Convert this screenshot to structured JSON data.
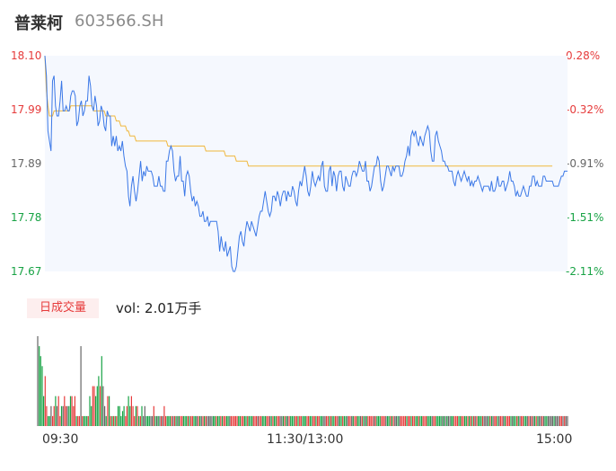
{
  "header": {
    "name": "普莱柯",
    "code": "603566.SH"
  },
  "colors": {
    "up": "#e63b3b",
    "down": "#18a345",
    "flat": "#666666",
    "price_line": "#3b78e7",
    "avg_line": "#f0b73c",
    "area_fill": "#f5f8fe"
  },
  "volume_panel": {
    "tag": "日成交量",
    "text": "vol: 2.01万手"
  },
  "chart_data": [
    {
      "type": "line",
      "title": "",
      "ylim": [
        17.67,
        18.1
      ],
      "y_ticks_left": [
        "18.10",
        "17.99",
        "17.89",
        "17.78",
        "17.67"
      ],
      "y_ticks_right": [
        "0.28%",
        "-0.32%",
        "-0.91%",
        "-1.51%",
        "-2.11%"
      ],
      "x_ticks": [
        "09:30",
        "11:30/13:00",
        "15:00"
      ],
      "series": [
        {
          "values": [
            18.1,
            18.06,
            17.95,
            17.93,
            17.91,
            18.05,
            18.06,
            18.0,
            17.98,
            17.98,
            18.01,
            18.05,
            17.99,
            17.99,
            18.0,
            17.99,
            17.99,
            18.02,
            18.03,
            18.03,
            18.02,
            17.96,
            17.97,
            18.0,
            18.01,
            17.98,
            17.99,
            18.01,
            18.01,
            18.06,
            18.04,
            18.0,
            17.99,
            18.02,
            18.0,
            17.96,
            17.97,
            18.0,
            17.99,
            17.96,
            17.95,
            17.99,
            17.98,
            17.98,
            17.92,
            17.94,
            17.92,
            17.94,
            17.91,
            17.92,
            17.91,
            17.93,
            17.9,
            17.88,
            17.87,
            17.82,
            17.8,
            17.84,
            17.86,
            17.83,
            17.81,
            17.83,
            17.86,
            17.89,
            17.85,
            17.87,
            17.86,
            17.88,
            17.87,
            17.87,
            17.87,
            17.86,
            17.84,
            17.84,
            17.84,
            17.86,
            17.84,
            17.84,
            17.83,
            17.83,
            17.89,
            17.89,
            17.91,
            17.92,
            17.91,
            17.87,
            17.85,
            17.86,
            17.86,
            17.9,
            17.85,
            17.85,
            17.82,
            17.86,
            17.87,
            17.86,
            17.83,
            17.81,
            17.82,
            17.8,
            17.81,
            17.8,
            17.78,
            17.78,
            17.79,
            17.77,
            17.77,
            17.78,
            17.76,
            17.77,
            17.77,
            17.77,
            17.77,
            17.77,
            17.75,
            17.71,
            17.74,
            17.72,
            17.71,
            17.73,
            17.7,
            17.71,
            17.72,
            17.68,
            17.67,
            17.67,
            17.68,
            17.71,
            17.74,
            17.75,
            17.73,
            17.72,
            17.75,
            17.77,
            17.76,
            17.75,
            17.77,
            17.76,
            17.75,
            17.74,
            17.76,
            17.78,
            17.79,
            17.79,
            17.81,
            17.83,
            17.81,
            17.79,
            17.78,
            17.79,
            17.82,
            17.82,
            17.81,
            17.83,
            17.82,
            17.8,
            17.82,
            17.83,
            17.83,
            17.81,
            17.83,
            17.82,
            17.82,
            17.84,
            17.83,
            17.81,
            17.8,
            17.83,
            17.85,
            17.84,
            17.86,
            17.88,
            17.86,
            17.83,
            17.82,
            17.84,
            17.87,
            17.85,
            17.84,
            17.85,
            17.86,
            17.85,
            17.88,
            17.89,
            17.84,
            17.83,
            17.83,
            17.87,
            17.88,
            17.84,
            17.87,
            17.86,
            17.83,
            17.86,
            17.87,
            17.87,
            17.84,
            17.83,
            17.86,
            17.85,
            17.84,
            17.84,
            17.86,
            17.87,
            17.87,
            17.86,
            17.87,
            17.89,
            17.88,
            17.87,
            17.87,
            17.89,
            17.85,
            17.85,
            17.83,
            17.84,
            17.86,
            17.88,
            17.88,
            17.9,
            17.89,
            17.85,
            17.83,
            17.84,
            17.86,
            17.88,
            17.88,
            17.87,
            17.86,
            17.88,
            17.87,
            17.88,
            17.88,
            17.88,
            17.86,
            17.86,
            17.87,
            17.89,
            17.9,
            17.92,
            17.9,
            17.94,
            17.95,
            17.94,
            17.95,
            17.93,
            17.92,
            17.94,
            17.93,
            17.92,
            17.94,
            17.95,
            17.96,
            17.95,
            17.91,
            17.89,
            17.89,
            17.94,
            17.95,
            17.93,
            17.92,
            17.91,
            17.89,
            17.89,
            17.88,
            17.88,
            17.87,
            17.87,
            17.87,
            17.85,
            17.84,
            17.86,
            17.87,
            17.86,
            17.85,
            17.86,
            17.87,
            17.86,
            17.85,
            17.86,
            17.84,
            17.85,
            17.84,
            17.85,
            17.85,
            17.86,
            17.85,
            17.84,
            17.83,
            17.84,
            17.84,
            17.84,
            17.84,
            17.83,
            17.85,
            17.83,
            17.83,
            17.84,
            17.86,
            17.84,
            17.84,
            17.85,
            17.85,
            17.83,
            17.84,
            17.85,
            17.87,
            17.85,
            17.85,
            17.84,
            17.82,
            17.83,
            17.82,
            17.82,
            17.83,
            17.84,
            17.83,
            17.82,
            17.82,
            17.84,
            17.84,
            17.86,
            17.86,
            17.84,
            17.85,
            17.84,
            17.84,
            17.84,
            17.86,
            17.86,
            17.85,
            17.85,
            17.85,
            17.85,
            17.85,
            17.84,
            17.84,
            17.84,
            17.84,
            17.85,
            17.86,
            17.86,
            17.87,
            17.87,
            17.87
          ]
        },
        {
          "values": [
            18.1,
            18.03,
            18.0,
            17.98,
            17.98,
            17.98,
            17.99,
            17.99,
            17.99,
            17.99,
            17.99,
            17.99,
            17.99,
            17.99,
            17.99,
            17.99,
            17.99,
            18.0,
            18.0,
            18.0,
            18.0,
            18.0,
            18.0,
            18.0,
            18.0,
            18.0,
            18.0,
            18.0,
            18.0,
            18.0,
            18.0,
            18.0,
            17.99,
            17.99,
            17.99,
            17.99,
            17.99,
            17.99,
            17.99,
            17.99,
            17.98,
            17.98,
            17.98,
            17.98,
            17.98,
            17.98,
            17.98,
            17.97,
            17.97,
            17.97,
            17.96,
            17.96,
            17.96,
            17.96,
            17.95,
            17.95,
            17.94,
            17.94,
            17.94,
            17.94,
            17.93,
            17.93,
            17.93,
            17.93,
            17.93,
            17.93,
            17.93,
            17.93,
            17.93,
            17.93,
            17.93,
            17.93,
            17.93,
            17.93,
            17.93,
            17.93,
            17.93,
            17.93,
            17.93,
            17.93,
            17.93,
            17.92,
            17.92,
            17.92,
            17.92,
            17.92,
            17.92,
            17.92,
            17.92,
            17.92,
            17.92,
            17.92,
            17.92,
            17.92,
            17.92,
            17.92,
            17.92,
            17.92,
            17.92,
            17.92,
            17.92,
            17.92,
            17.92,
            17.92,
            17.92,
            17.92,
            17.91,
            17.91,
            17.91,
            17.91,
            17.91,
            17.91,
            17.91,
            17.91,
            17.91,
            17.91,
            17.91,
            17.91,
            17.91,
            17.9,
            17.9,
            17.9,
            17.9,
            17.9,
            17.9,
            17.9,
            17.89,
            17.89,
            17.89,
            17.89,
            17.89,
            17.89,
            17.89,
            17.89,
            17.88,
            17.88,
            17.88,
            17.88,
            17.88,
            17.88,
            17.88,
            17.88,
            17.88,
            17.88,
            17.88,
            17.88,
            17.88,
            17.88,
            17.88,
            17.88,
            17.88,
            17.88,
            17.88,
            17.88,
            17.88,
            17.88,
            17.88,
            17.88,
            17.88,
            17.88,
            17.88,
            17.88,
            17.88,
            17.88,
            17.88,
            17.88,
            17.88,
            17.88,
            17.88,
            17.88,
            17.88,
            17.88,
            17.88,
            17.88,
            17.88,
            17.88,
            17.88,
            17.88,
            17.88,
            17.88,
            17.88,
            17.88,
            17.88,
            17.88,
            17.88,
            17.88,
            17.88,
            17.88,
            17.88,
            17.88,
            17.88,
            17.88,
            17.88,
            17.88,
            17.88,
            17.88,
            17.88,
            17.88,
            17.88,
            17.88,
            17.88,
            17.88,
            17.88,
            17.88,
            17.88,
            17.88,
            17.88,
            17.88,
            17.88,
            17.88,
            17.88,
            17.88,
            17.88,
            17.88,
            17.88,
            17.88,
            17.88,
            17.88,
            17.88,
            17.88,
            17.88,
            17.88,
            17.88,
            17.88,
            17.88,
            17.88,
            17.88,
            17.88,
            17.88,
            17.88,
            17.88,
            17.88,
            17.88,
            17.88,
            17.88,
            17.88,
            17.88,
            17.88,
            17.88,
            17.88,
            17.88,
            17.88,
            17.88,
            17.88,
            17.88,
            17.88,
            17.88,
            17.88,
            17.88,
            17.88,
            17.88,
            17.88,
            17.88,
            17.88,
            17.88,
            17.88,
            17.88,
            17.88,
            17.88,
            17.88,
            17.88,
            17.88,
            17.88,
            17.88,
            17.88,
            17.88,
            17.88,
            17.88,
            17.88,
            17.88,
            17.88,
            17.88,
            17.88,
            17.88,
            17.88,
            17.88,
            17.88,
            17.88,
            17.88,
            17.88,
            17.88,
            17.88,
            17.88,
            17.88,
            17.88,
            17.88,
            17.88,
            17.88,
            17.88,
            17.88,
            17.88,
            17.88,
            17.88,
            17.88,
            17.88,
            17.88,
            17.88,
            17.88,
            17.88,
            17.88,
            17.88,
            17.88,
            17.88,
            17.88,
            17.88,
            17.88,
            17.88,
            17.88,
            17.88,
            17.88,
            17.88,
            17.88,
            17.88,
            17.88,
            17.88,
            17.88,
            17.88,
            17.88,
            17.88,
            17.88,
            17.88,
            17.88,
            17.88,
            17.88,
            17.88,
            17.88,
            17.88,
            17.88,
            17.88,
            17.88,
            17.88,
            17.88,
            17.88,
            17.88,
            17.88
          ]
        }
      ]
    },
    {
      "type": "bar",
      "title": "",
      "values": [
        0.9,
        0.8,
        0.7,
        0.6,
        0.3,
        0.5,
        0.2,
        0.1,
        0.1,
        0.2,
        0.1,
        0.2,
        0.3,
        0.2,
        0.3,
        0.1,
        0.2,
        0.2,
        0.3,
        0.2,
        0.2,
        0.2,
        0.3,
        0.3,
        0.2,
        0.3,
        0.1,
        0.1,
        0.1,
        0.8,
        0.1,
        0.1,
        0.1,
        0.1,
        0.1,
        0.3,
        0.2,
        0.4,
        0.4,
        0.3,
        0.4,
        0.5,
        0.4,
        0.7,
        0.4,
        0.2,
        0.1,
        0.3,
        0.3,
        0.1,
        0.1,
        0.1,
        0.1,
        0.1,
        0.2,
        0.2,
        0.1,
        0.15,
        0.2,
        0.1,
        0.2,
        0.3,
        0.2,
        0.3,
        0.2,
        0.1,
        0.2,
        0.2,
        0.1,
        0.1,
        0.2,
        0.1,
        0.2,
        0.1,
        0.1,
        0.1,
        0.1,
        0.1,
        0.2,
        0.1,
        0.1,
        0.1,
        0.1,
        0.1,
        0.1,
        0.2,
        0.1,
        0.1,
        0.1,
        0.1,
        0.1,
        0.1,
        0.1,
        0.1,
        0.1,
        0.1,
        0.1,
        0.1,
        0.1,
        0.1,
        0.1,
        0.1,
        0.1,
        0.1,
        0.1,
        0.1,
        0.1,
        0.1,
        0.1,
        0.1,
        0.1,
        0.1,
        0.1,
        0.1,
        0.1,
        0.1,
        0.1,
        0.1,
        0.1,
        0.1,
        0.1,
        0.1,
        0.1,
        0.1,
        0.1,
        0.1,
        0.1,
        0.1,
        0.1,
        0.1,
        0.1,
        0.1,
        0.1,
        0.1,
        0.1,
        0.1,
        0.1,
        0.1,
        0.1,
        0.1,
        0.1,
        0.1,
        0.1,
        0.1,
        0.1,
        0.1,
        0.1,
        0.1,
        0.1,
        0.1,
        0.1,
        0.1,
        0.1,
        0.1,
        0.1,
        0.1,
        0.1,
        0.1,
        0.1,
        0.1,
        0.1,
        0.1,
        0.1,
        0.1,
        0.1,
        0.1,
        0.1,
        0.1,
        0.1,
        0.1,
        0.1,
        0.1,
        0.1,
        0.1,
        0.1,
        0.1,
        0.1,
        0.1,
        0.1,
        0.1,
        0.1,
        0.1,
        0.1,
        0.1,
        0.1,
        0.1,
        0.1,
        0.1,
        0.1,
        0.1,
        0.1,
        0.1,
        0.1,
        0.1,
        0.1,
        0.1,
        0.1,
        0.1,
        0.1,
        0.1,
        0.1,
        0.1,
        0.1,
        0.1,
        0.1,
        0.1,
        0.1,
        0.1,
        0.1,
        0.1,
        0.1,
        0.1,
        0.1,
        0.1,
        0.1,
        0.1,
        0.1,
        0.1,
        0.1,
        0.1,
        0.1,
        0.1,
        0.1,
        0.1,
        0.1,
        0.1,
        0.1,
        0.1,
        0.1,
        0.1,
        0.1,
        0.1,
        0.1,
        0.1,
        0.1,
        0.1,
        0.1,
        0.1,
        0.1,
        0.1,
        0.1,
        0.1,
        0.1,
        0.1,
        0.1,
        0.1,
        0.1,
        0.1,
        0.1,
        0.1,
        0.1,
        0.1,
        0.1,
        0.1,
        0.1,
        0.1,
        0.1,
        0.1,
        0.1,
        0.1,
        0.1,
        0.1,
        0.1,
        0.1,
        0.1,
        0.1,
        0.1,
        0.1,
        0.1,
        0.1,
        0.1,
        0.1,
        0.1,
        0.1,
        0.1,
        0.1,
        0.1,
        0.1,
        0.1,
        0.1,
        0.1,
        0.1,
        0.1,
        0.1,
        0.1,
        0.1,
        0.1,
        0.1,
        0.1,
        0.1,
        0.1,
        0.1,
        0.1,
        0.1,
        0.1,
        0.1,
        0.1,
        0.1,
        0.1,
        0.1,
        0.1,
        0.1,
        0.1,
        0.1,
        0.1,
        0.1,
        0.1,
        0.1,
        0.1,
        0.1,
        0.1,
        0.1,
        0.1,
        0.1,
        0.1,
        0.1,
        0.1,
        0.1,
        0.1,
        0.1,
        0.1,
        0.1,
        0.1,
        0.1,
        0.1,
        0.1,
        0.1,
        0.1,
        0.1,
        0.1,
        0.1,
        0.1,
        0.1,
        0.1,
        0.1,
        0.1,
        0.1,
        0.1,
        0.1,
        0.1,
        0.1,
        0.1,
        0.1,
        0.1,
        0.1,
        0.1,
        0.1,
        0.1,
        0.1,
        0.1,
        0.1,
        0.1,
        0.1,
        0.1,
        0.1,
        0.1,
        0.1
      ]
    }
  ]
}
